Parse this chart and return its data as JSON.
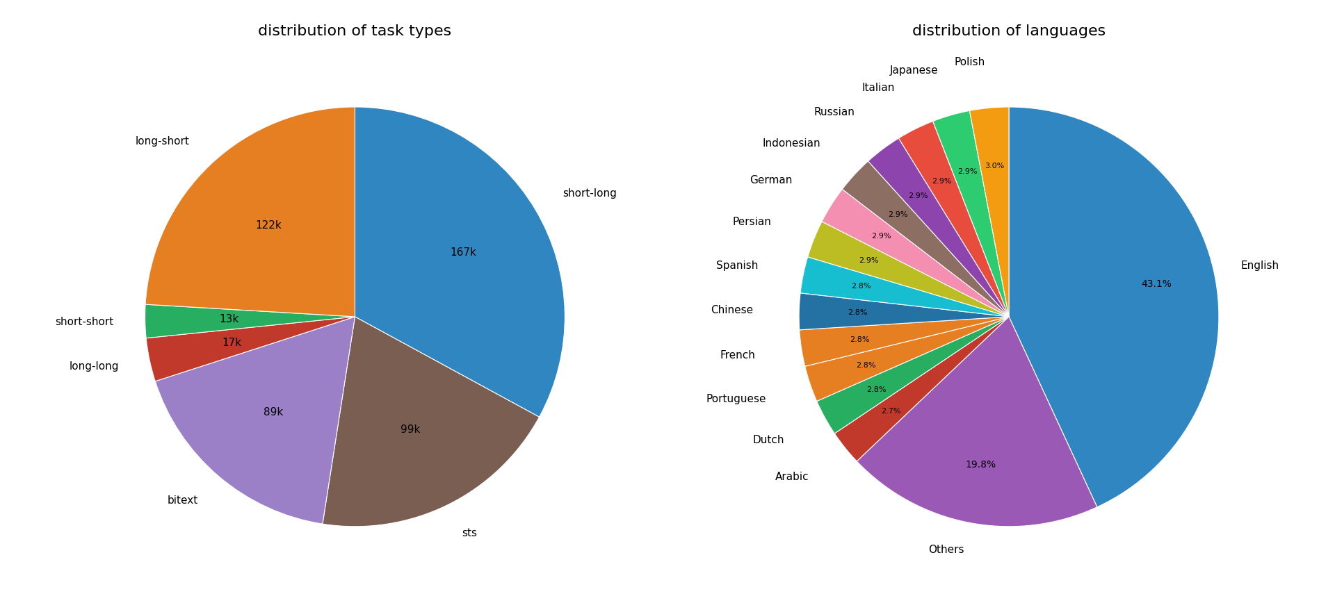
{
  "task_title": "distribution of task types",
  "task_labels": [
    "short-long",
    "sts",
    "bitext",
    "long-long",
    "short-short",
    "long-short"
  ],
  "task_values": [
    167,
    99,
    89,
    17,
    13,
    122
  ],
  "task_text_labels": [
    "167k",
    "99k",
    "89k",
    "17k",
    "13k",
    "122k"
  ],
  "task_colors": [
    "#2f86c0",
    "#7b5e52",
    "#9b80c8",
    "#c0392b",
    "#27ae60",
    "#e67e22"
  ],
  "lang_title": "distribution of languages",
  "lang_labels": [
    "English",
    "Others",
    "Arabic",
    "Dutch",
    "Portuguese",
    "French",
    "Chinese",
    "Spanish",
    "Persian",
    "German",
    "Indonesian",
    "Russian",
    "Italian",
    "Japanese",
    "Polish"
  ],
  "lang_values": [
    43.1,
    19.8,
    2.7,
    2.8,
    2.8,
    2.8,
    2.8,
    2.8,
    2.9,
    2.9,
    2.9,
    2.9,
    2.9,
    2.9,
    3.0
  ],
  "lang_pct_labels": [
    "43.1%",
    "19.8%",
    "2.7%",
    "2.8%",
    "2.8%",
    "2.8%",
    "2.8%",
    "2.8%",
    "2.9%",
    "2.9%",
    "2.9%",
    "2.9%",
    "2.9%",
    "2.9%",
    "3.0%"
  ],
  "lang_colors": [
    "#2f86c0",
    "#9b59b6",
    "#c0392b",
    "#27ae60",
    "#e67e22",
    "#e67e22",
    "#2471a3",
    "#17a589",
    "#95a5a6",
    "#f1948a",
    "#7d6608",
    "#8e44ad",
    "#e74c3c",
    "#229954",
    "#e59866"
  ],
  "background_color": "#ffffff",
  "title_fontsize": 16,
  "label_fontsize": 11
}
